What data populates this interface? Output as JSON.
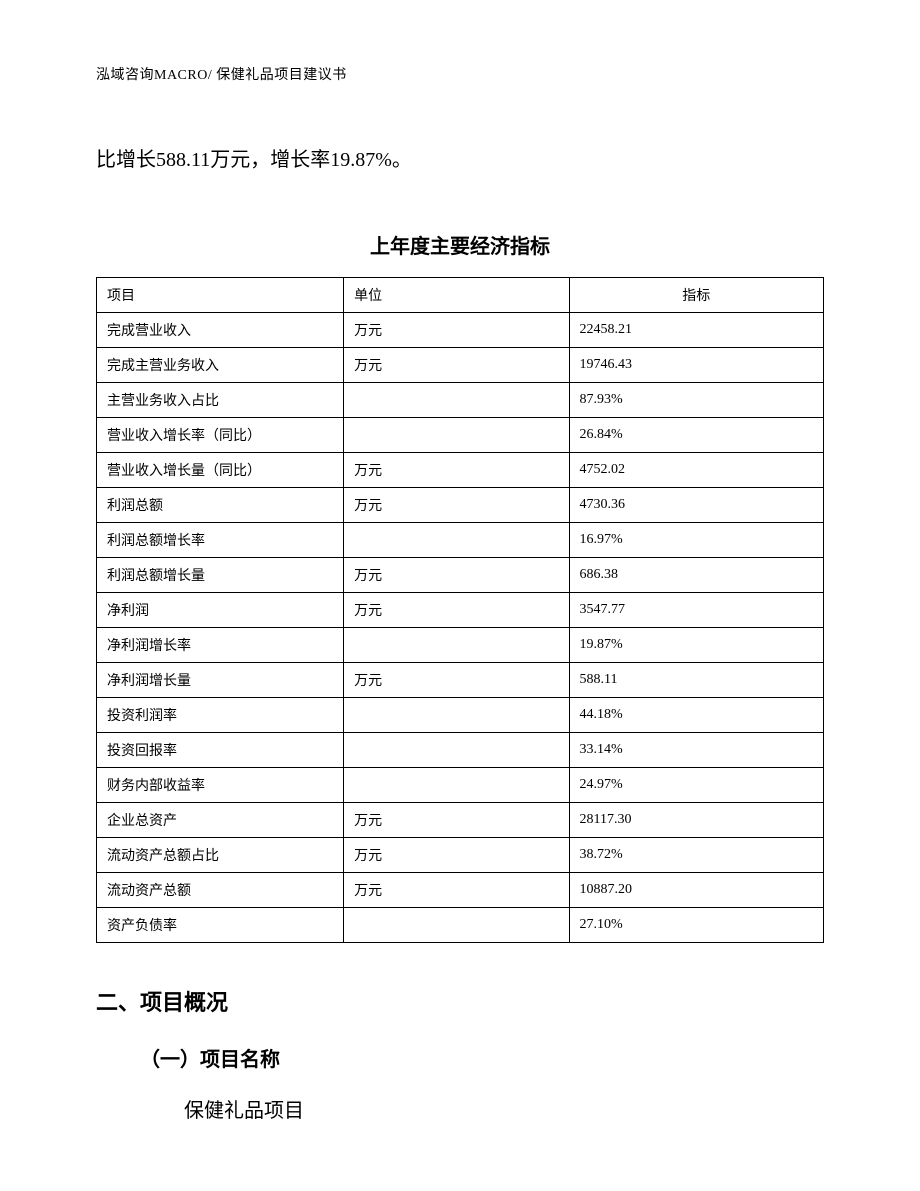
{
  "header": "泓域咨询MACRO/ 保健礼品项目建议书",
  "body_text": "比增长588.11万元，增长率19.87%。",
  "table": {
    "title": "上年度主要经济指标",
    "columns": [
      "项目",
      "单位",
      "指标"
    ],
    "rows": [
      [
        "完成营业收入",
        "万元",
        "22458.21"
      ],
      [
        "完成主营业务收入",
        "万元",
        "19746.43"
      ],
      [
        "主营业务收入占比",
        "",
        "87.93%"
      ],
      [
        "营业收入增长率（同比）",
        "",
        "26.84%"
      ],
      [
        "营业收入增长量（同比）",
        "万元",
        "4752.02"
      ],
      [
        "利润总额",
        "万元",
        "4730.36"
      ],
      [
        "利润总额增长率",
        "",
        "16.97%"
      ],
      [
        "利润总额增长量",
        "万元",
        "686.38"
      ],
      [
        "净利润",
        "万元",
        "3547.77"
      ],
      [
        "净利润增长率",
        "",
        "19.87%"
      ],
      [
        "净利润增长量",
        "万元",
        "588.11"
      ],
      [
        "投资利润率",
        "",
        "44.18%"
      ],
      [
        "投资回报率",
        "",
        "33.14%"
      ],
      [
        "财务内部收益率",
        "",
        "24.97%"
      ],
      [
        "企业总资产",
        "万元",
        "28117.30"
      ],
      [
        "流动资产总额占比",
        "万元",
        "38.72%"
      ],
      [
        "流动资产总额",
        "万元",
        "10887.20"
      ],
      [
        "资产负债率",
        "",
        "27.10%"
      ]
    ]
  },
  "section": {
    "heading": "二、项目概况",
    "sub_heading": "（一）项目名称",
    "content": "保健礼品项目"
  }
}
